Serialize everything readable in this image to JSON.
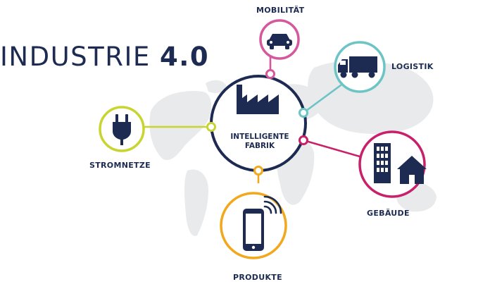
{
  "title": {
    "regular": "INDUSTRIE ",
    "bold": "4.0"
  },
  "center": {
    "line1": "INTELLIGENTE",
    "line2": "FABRIK"
  },
  "nodes": [
    {
      "id": "mobilitaet",
      "label": "MOBILITÄT",
      "color": "#d6589c",
      "icon": "car-icon"
    },
    {
      "id": "logistik",
      "label": "LOGISTIK",
      "color": "#6cc5c4",
      "icon": "truck-icon"
    },
    {
      "id": "gebaeude",
      "label": "GEBÄUDE",
      "color": "#c8206a",
      "icon": "building-house-icon"
    },
    {
      "id": "produkte",
      "label": "PRODUKTE",
      "color": "#f2a81c",
      "icon": "smartphone-icon"
    },
    {
      "id": "stromnetze",
      "label": "STROMNETZE",
      "color": "#c8d42f",
      "icon": "plug-icon"
    }
  ],
  "colors": {
    "navy": "#1d2b52",
    "map": "#e9eaec"
  },
  "center_icon": "factory-icon"
}
